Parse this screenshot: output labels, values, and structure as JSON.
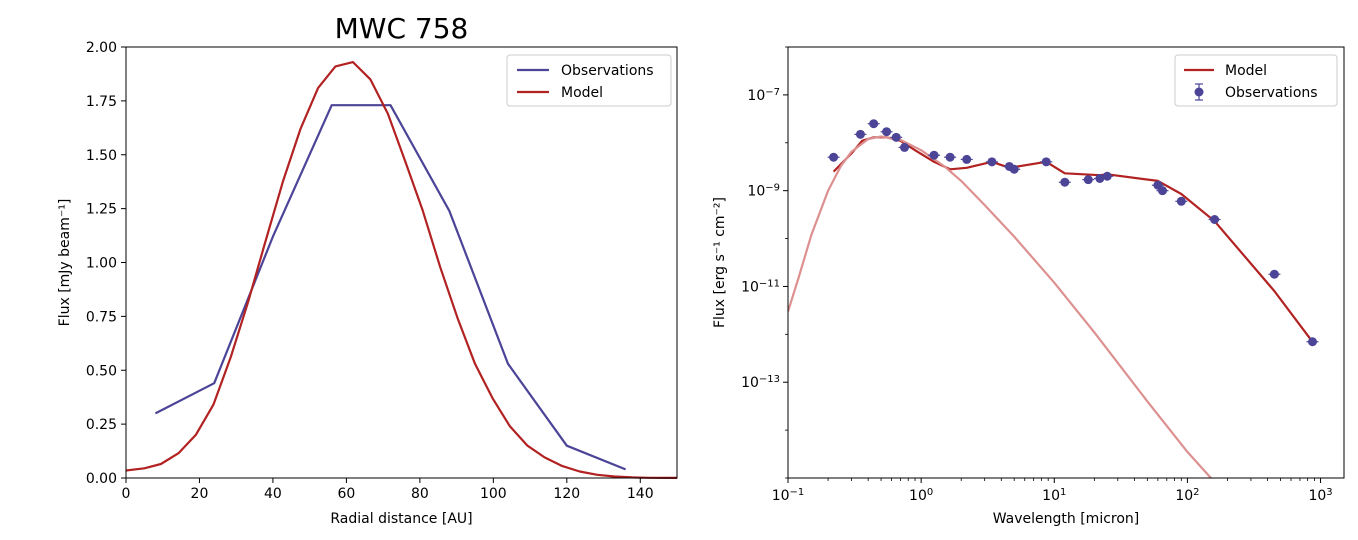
{
  "chart_data": [
    {
      "type": "line",
      "title": "MWC 758",
      "xlabel": "Radial distance [AU]",
      "ylabel": "Flux [mJy beam⁻¹]",
      "xlim": [
        0,
        150
      ],
      "ylim": [
        0,
        2.0
      ],
      "xticks": [
        0,
        20,
        40,
        60,
        80,
        100,
        120,
        140
      ],
      "yticks": [
        0.0,
        0.25,
        0.5,
        0.75,
        1.0,
        1.25,
        1.5,
        1.75,
        2.0
      ],
      "xtick_labels": [
        "0",
        "20",
        "40",
        "60",
        "80",
        "100",
        "120",
        "140"
      ],
      "ytick_labels": [
        "0.00",
        "0.25",
        "0.50",
        "0.75",
        "1.00",
        "1.25",
        "1.50",
        "1.75",
        "2.00"
      ],
      "legend_position": "top-right",
      "grid": false,
      "series": [
        {
          "name": "Observations",
          "color": "#4b4497",
          "x": [
            8,
            24,
            40,
            56,
            72,
            88,
            104,
            120,
            136
          ],
          "y": [
            0.3,
            0.44,
            1.12,
            1.73,
            1.73,
            1.24,
            0.53,
            0.15,
            0.04
          ]
        },
        {
          "name": "Model",
          "color": "#b22222",
          "x": [
            0,
            5,
            9.5,
            14.3,
            19,
            23.8,
            28.5,
            33.3,
            38,
            42.8,
            47.5,
            52.3,
            57,
            61.8,
            66.5,
            71.3,
            76,
            80.8,
            85.5,
            90.3,
            95,
            99.8,
            104.5,
            109.3,
            114,
            118.8,
            123.5,
            128.3,
            133,
            137.8,
            142.5,
            147.3,
            150
          ],
          "y": [
            0.035,
            0.045,
            0.065,
            0.115,
            0.2,
            0.34,
            0.56,
            0.82,
            1.1,
            1.38,
            1.62,
            1.81,
            1.91,
            1.93,
            1.85,
            1.69,
            1.47,
            1.24,
            0.98,
            0.74,
            0.53,
            0.37,
            0.24,
            0.15,
            0.095,
            0.055,
            0.03,
            0.015,
            0.007,
            0.003,
            0.001,
            0.0005,
            0.0003
          ]
        }
      ]
    },
    {
      "type": "line",
      "title": "",
      "xlabel": "Wavelength [micron]",
      "ylabel": "Flux [erg s⁻¹ cm⁻²]",
      "xscale": "log",
      "yscale": "log",
      "xlim": [
        0.1,
        1500
      ],
      "ylim": [
        1e-15,
        1e-06
      ],
      "xtick_exponents": [
        -1,
        0,
        1,
        2,
        3
      ],
      "ytick_exponents": [
        -13,
        -11,
        -9,
        -7
      ],
      "legend_position": "top-right",
      "grid": false,
      "series": [
        {
          "name": "Model",
          "color": "#b22222",
          "x": [
            0.22,
            0.3,
            0.36,
            0.44,
            0.55,
            0.7,
            0.9,
            1.25,
            1.65,
            2.2,
            3.4,
            4.6,
            8.7,
            12,
            22,
            25,
            60,
            90,
            160,
            450,
            870
          ],
          "y": [
            2.5e-09,
            6e-09,
            1.1e-08,
            1.3e-08,
            1.3e-08,
            1.1e-08,
            7e-09,
            4e-09,
            2.8e-09,
            3e-09,
            4e-09,
            3e-09,
            4e-09,
            2.3e-09,
            2.1e-09,
            2.2e-09,
            1.6e-09,
            8.5e-10,
            2.3e-10,
            8e-12,
            7e-13
          ]
        },
        {
          "name": "",
          "color": "#dd9090",
          "x": [
            0.1,
            0.12,
            0.15,
            0.2,
            0.25,
            0.3,
            0.4,
            0.5,
            0.7,
            1,
            1.5,
            2,
            3,
            5,
            10,
            20,
            50,
            100,
            150
          ],
          "y": [
            3e-12,
            1.5e-11,
            1.2e-10,
            1e-09,
            3.3e-09,
            6.5e-09,
            1.2e-08,
            1.35e-08,
            1.15e-08,
            7e-09,
            3.2e-09,
            1.6e-09,
            5e-10,
            1.1e-10,
            1.2e-11,
            1.1e-12,
            4e-14,
            3.5e-15,
            1e-15
          ]
        },
        {
          "name": "Observations",
          "color": "#4b4497",
          "markers": true,
          "x": [
            0.22,
            0.35,
            0.44,
            0.55,
            0.65,
            0.75,
            1.25,
            1.65,
            2.2,
            3.4,
            4.6,
            5.0,
            8.7,
            12,
            18,
            22,
            25,
            60,
            65,
            90,
            160,
            450,
            870
          ],
          "y": [
            5e-09,
            1.5e-08,
            2.5e-08,
            1.7e-08,
            1.3e-08,
            8e-09,
            5.5e-09,
            5e-09,
            4.5e-09,
            4e-09,
            3.2e-09,
            2.8e-09,
            4e-09,
            1.5e-09,
            1.7e-09,
            1.8e-09,
            2e-09,
            1.3e-09,
            1e-09,
            6e-10,
            2.5e-10,
            1.8e-11,
            7e-13
          ]
        }
      ]
    }
  ]
}
